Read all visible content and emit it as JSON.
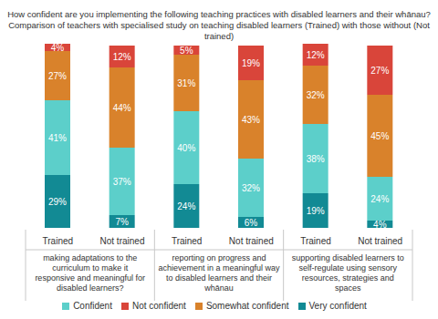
{
  "chart_data": {
    "type": "bar",
    "title": "How confident are you implementing the following teaching practices with disabled learners and their whānau?",
    "subtitle": "Comparison of teachers with specialised study on teaching disabled learners (Trained) with those without (Not trained)",
    "categories": [
      "Trained",
      "Not trained",
      "Trained",
      "Not trained",
      "Trained",
      "Not trained"
    ],
    "groups": [
      "making adaptations to the curriculum to make it responsive and meaningful for disabled learners?",
      "reporting on progress and achievement in a meaningful way to disabled learners and their whānau",
      "supporting disabled learners to self-regulate using sensory resources, strategies and spaces"
    ],
    "stacked": true,
    "data_labels": true,
    "tick_labels": "x",
    "legend": "bottom",
    "series": [
      {
        "name": "Very confident",
        "color": "#128a94",
        "values": [
          29,
          7,
          24,
          6,
          19,
          4
        ],
        "value_labels": [
          "29%",
          "7%",
          "24%",
          "6%",
          "19%",
          "4%"
        ]
      },
      {
        "name": "Confident",
        "color": "#5ccfca",
        "values": [
          41,
          37,
          40,
          32,
          38,
          24
        ],
        "value_labels": [
          "41%",
          "37%",
          "40%",
          "32%",
          "38%",
          "24%"
        ]
      },
      {
        "name": "Somewhat confident",
        "color": "#d9822b",
        "values": [
          27,
          44,
          31,
          43,
          32,
          45
        ],
        "value_labels": [
          "27%",
          "44%",
          "31%",
          "43%",
          "32%",
          "45%"
        ]
      },
      {
        "name": "Not confident",
        "color": "#d9453a",
        "values": [
          4,
          12,
          5,
          19,
          12,
          27
        ],
        "value_labels": [
          "4%",
          "12%",
          "5%",
          "19%",
          "12%",
          "27%"
        ]
      }
    ]
  }
}
